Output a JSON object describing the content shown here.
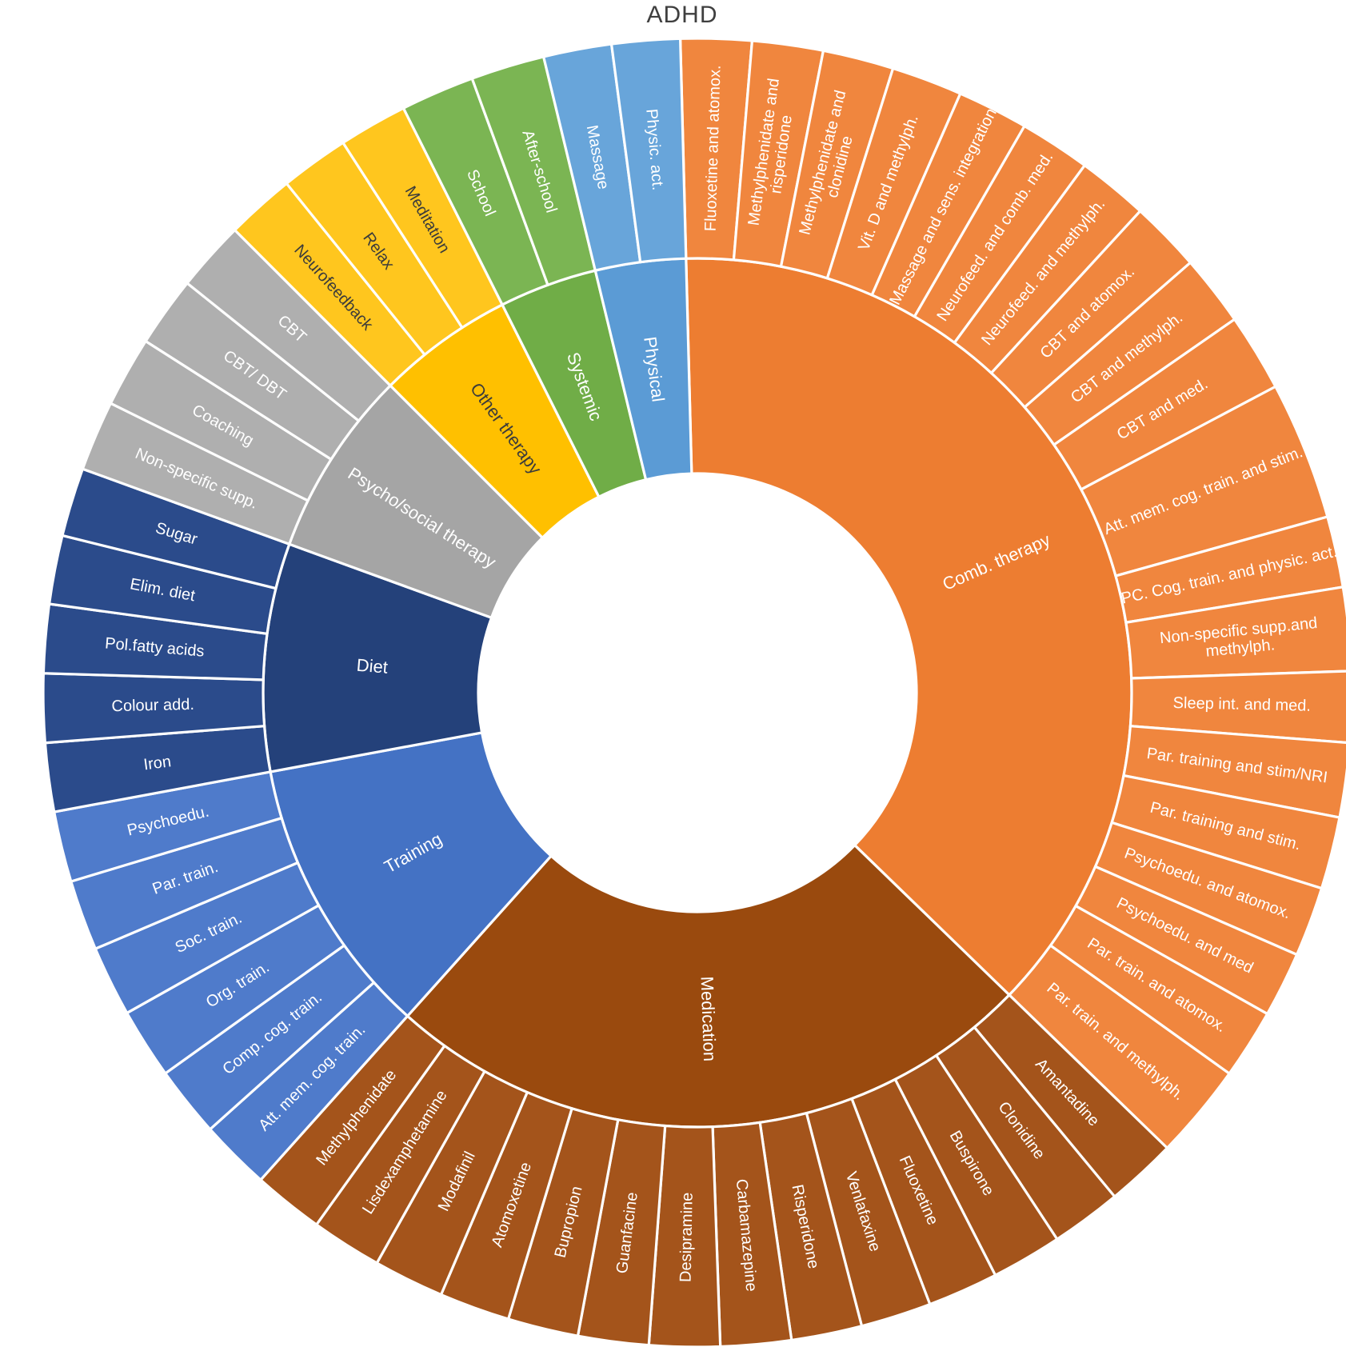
{
  "chart_data": {
    "type": "sunburst",
    "title": "ADHD",
    "rings": [
      "treatment category",
      "specific intervention"
    ],
    "rotation_deg": -1.5,
    "stroke_color": "#FFFFFF",
    "legend": "none",
    "categories": [
      {
        "label": "Comb. therapy",
        "color": "#ED7D31",
        "child_color": "#F0863E",
        "text_color": "#FFFFFF",
        "children": [
          {
            "label": "Fluoxetine and atomox.",
            "value": 6.3
          },
          {
            "label": "Methylphenidate and\nrisperidone",
            "value": 6.3
          },
          {
            "label": "Methylphenidate and\nclonidine",
            "value": 6.3
          },
          {
            "label": "Vit. D and methylph.",
            "value": 6.3
          },
          {
            "label": "Massage and sens. integration",
            "value": 6.3
          },
          {
            "label": "Neurofeed. and comb. med.",
            "value": 6.3
          },
          {
            "label": "Neurofeed. and methylph.",
            "value": 6.3
          },
          {
            "label": "CBT and atomox.",
            "value": 6.3
          },
          {
            "label": "CBT and methylph.",
            "value": 6.3
          },
          {
            "label": "CBT and med.",
            "value": 6.9
          },
          {
            "label": "Att. mem. cog. train. and stim.",
            "value": 12.3
          },
          {
            "label": "PC. Cog. train. and physic. act.",
            "value": 6.3
          },
          {
            "label": "Non-specific supp.and\nmethylph.",
            "value": 7.4
          },
          {
            "label": "Sleep int. and med.",
            "value": 6.3
          },
          {
            "label": "Par. training and stim/NRI",
            "value": 6.6
          },
          {
            "label": "Par. training and stim.",
            "value": 6.4
          },
          {
            "label": "Psychoedu. and atomox.",
            "value": 6.2
          },
          {
            "label": "Psychoedu. and med",
            "value": 5.8
          },
          {
            "label": "Par. train. and atomox.",
            "value": 6.2
          },
          {
            "label": "Par. train. and methylph.",
            "value": 8.5
          }
        ]
      },
      {
        "label": "Medication",
        "color": "#9A4A0E",
        "child_color": "#A4541B",
        "text_color": "#FFFFFF",
        "children": [
          {
            "label": "Amantadine",
            "value": 6.27
          },
          {
            "label": "Clonidine",
            "value": 6.27
          },
          {
            "label": "Buspirone",
            "value": 6.27
          },
          {
            "label": "Fluoxetine",
            "value": 6.27
          },
          {
            "label": "Venlafaxine",
            "value": 6.27
          },
          {
            "label": "Risperidone",
            "value": 6.27
          },
          {
            "label": "Carbamazepine",
            "value": 6.27
          },
          {
            "label": "Desipramine",
            "value": 6.27
          },
          {
            "label": "Guanfacine",
            "value": 6.27
          },
          {
            "label": "Bupropion",
            "value": 6.27
          },
          {
            "label": "Atomoxetine",
            "value": 6.27
          },
          {
            "label": "Modafinil",
            "value": 6.27
          },
          {
            "label": "Lisdexamphetamine",
            "value": 6.27
          },
          {
            "label": "Methylphenidate",
            "value": 6.27
          }
        ]
      },
      {
        "label": "Training",
        "color": "#4472C4",
        "child_color": "#4F7BCB",
        "text_color": "#FFFFFF",
        "children": [
          {
            "label": "Att. mem. cog. train.",
            "value": 6.27
          },
          {
            "label": "Comp. cog. train.",
            "value": 6.27
          },
          {
            "label": "Org. train.",
            "value": 6.27
          },
          {
            "label": "Soc. train.",
            "value": 6.27
          },
          {
            "label": "Par. train.",
            "value": 6.27
          },
          {
            "label": "Psychoedu.",
            "value": 6.27
          }
        ]
      },
      {
        "label": "Diet",
        "color": "#24417A",
        "child_color": "#2B4B8B",
        "text_color": "#FFFFFF",
        "children": [
          {
            "label": "Iron",
            "value": 6.1
          },
          {
            "label": "Colour add.",
            "value": 6.1
          },
          {
            "label": "Pol.fatty acids",
            "value": 6.1
          },
          {
            "label": "Elim. diet",
            "value": 6.1
          },
          {
            "label": "Sugar",
            "value": 6.1
          }
        ]
      },
      {
        "label": "Psycho/social therapy",
        "color": "#A5A5A5",
        "child_color": "#AFAFAF",
        "text_color": "#FFFFFF",
        "children": [
          {
            "label": "Non-specific supp.",
            "value": 6.25
          },
          {
            "label": "Coaching",
            "value": 6.25
          },
          {
            "label": "CBT/ DBT",
            "value": 6.25
          },
          {
            "label": "CBT",
            "value": 6.25
          }
        ]
      },
      {
        "label": "Other therapy",
        "color": "#FFC000",
        "child_color": "#FFC61E",
        "text_color": "#3B3B3B",
        "children": [
          {
            "label": "Neurofeedback",
            "value": 6.1
          },
          {
            "label": "Relax",
            "value": 6.1
          },
          {
            "label": "Meditation",
            "value": 6.1
          }
        ]
      },
      {
        "label": "Systemic",
        "color": "#70AD47",
        "child_color": "#7BB553",
        "text_color": "#FFFFFF",
        "children": [
          {
            "label": "School",
            "value": 6.55
          },
          {
            "label": "After-school",
            "value": 6.55
          }
        ]
      },
      {
        "label": "Physical",
        "color": "#5B9BD5",
        "child_color": "#68A5DA",
        "text_color": "#FFFFFF",
        "children": [
          {
            "label": "Massage",
            "value": 6.05
          },
          {
            "label": "Physic. act.",
            "value": 6.05
          }
        ]
      }
    ]
  }
}
